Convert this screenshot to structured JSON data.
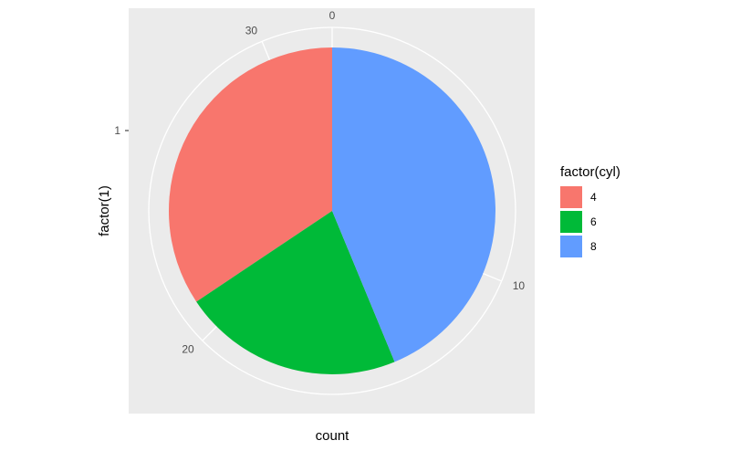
{
  "chart_data": {
    "type": "pie",
    "title": "",
    "xlabel": "count",
    "ylabel": "factor(1)",
    "y_tick": "1",
    "categories": [
      "4",
      "6",
      "8"
    ],
    "values": [
      11,
      7,
      14
    ],
    "colors": [
      "#F8766D",
      "#00BA38",
      "#619CFF"
    ],
    "radial_ticks": [
      "0",
      "10",
      "20",
      "30"
    ],
    "radial_tick_values": [
      0,
      10,
      20,
      30
    ],
    "total": 32,
    "grid": true,
    "legend": {
      "title": "factor(cyl)",
      "placement": "right",
      "entries": [
        "4",
        "6",
        "8"
      ]
    }
  }
}
